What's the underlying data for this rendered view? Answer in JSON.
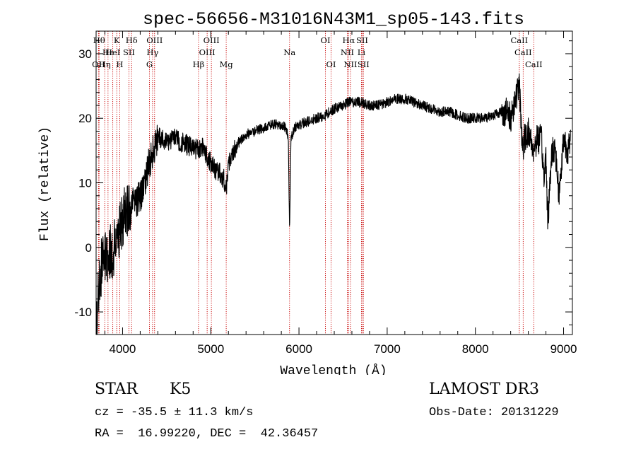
{
  "chart_data": {
    "type": "line",
    "title": "spec-56656-M31016N43M1_sp05-143.fits",
    "xlabel": "Wavelength (Å)",
    "ylabel": "Flux (relative)",
    "xlim": [
      3700,
      9100
    ],
    "ylim": [
      -13.5,
      33.5
    ],
    "x_ticks": [
      4000,
      5000,
      6000,
      7000,
      8000,
      9000
    ],
    "y_ticks": [
      -10,
      0,
      10,
      20,
      30
    ],
    "spectrum_anchor_points": {
      "x": [
        3700,
        3730,
        3760,
        3800,
        3850,
        3900,
        3950,
        4000,
        4050,
        4100,
        4150,
        4200,
        4250,
        4300,
        4350,
        4400,
        4450,
        4500,
        4600,
        4700,
        4800,
        4861,
        4900,
        4950,
        5000,
        5050,
        5100,
        5150,
        5175,
        5200,
        5250,
        5300,
        5400,
        5500,
        5600,
        5700,
        5800,
        5850,
        5880,
        5893,
        5910,
        5950,
        6000,
        6100,
        6200,
        6300,
        6400,
        6500,
        6563,
        6600,
        6700,
        6800,
        6900,
        7000,
        7100,
        7200,
        7300,
        7400,
        7500,
        7600,
        7700,
        7800,
        7900,
        8000,
        8100,
        8200,
        8300,
        8350,
        8400,
        8450,
        8498,
        8520,
        8542,
        8560,
        8600,
        8620,
        8662,
        8700,
        8750,
        8780,
        8800,
        8820,
        8840,
        8860,
        8900,
        8950,
        9000,
        9050,
        9080
      ],
      "y": [
        -11,
        -6,
        -3,
        -2,
        -1,
        0,
        2,
        4,
        6,
        6.5,
        7,
        8,
        10,
        13,
        15,
        17,
        17,
        16.5,
        17,
        16,
        15.5,
        15,
        15.5,
        14.5,
        13,
        12,
        11.5,
        10.5,
        9,
        13,
        15,
        16,
        17.5,
        18,
        18.5,
        19,
        19,
        18.5,
        17,
        2,
        17,
        18.5,
        19,
        19.5,
        20,
        20.5,
        21.5,
        22,
        22.5,
        22.5,
        22.5,
        22,
        22,
        22.5,
        23,
        23,
        22.5,
        22,
        21.5,
        21,
        21,
        20.5,
        20,
        20,
        20,
        20.5,
        21,
        21,
        20,
        23,
        25,
        19,
        15,
        17,
        18,
        17,
        15,
        17,
        16.5,
        10,
        15,
        4,
        8,
        14,
        16,
        8,
        17,
        15,
        16
      ]
    },
    "absorption_lines": [
      {
        "wavelength": 3734,
        "label": "Hθ",
        "row": 1
      },
      {
        "wavelength": 3727,
        "label": "OII",
        "row": 3
      },
      {
        "wavelength": 3798,
        "label": "Hη",
        "row": 3
      },
      {
        "wavelength": 3835,
        "label": "Hε",
        "row": 2
      },
      {
        "wavelength": 3889,
        "label": "HeI",
        "row": 2
      },
      {
        "wavelength": 3934,
        "label": "K",
        "row": 1
      },
      {
        "wavelength": 3968,
        "label": "H",
        "row": 3
      },
      {
        "wavelength": 4072,
        "label": "SII",
        "row": 2
      },
      {
        "wavelength": 4102,
        "label": "Hδ",
        "row": 1
      },
      {
        "wavelength": 4305,
        "label": "G",
        "row": 3
      },
      {
        "wavelength": 4340,
        "label": "Hγ",
        "row": 2
      },
      {
        "wavelength": 4363,
        "label": "OIII",
        "row": 1
      },
      {
        "wavelength": 4861,
        "label": "Hβ",
        "row": 3
      },
      {
        "wavelength": 4959,
        "label": "OIII",
        "row": 2
      },
      {
        "wavelength": 5007,
        "label": "OIII",
        "row": 1
      },
      {
        "wavelength": 5175,
        "label": "Mg",
        "row": 3
      },
      {
        "wavelength": 5893,
        "label": "Na",
        "row": 2
      },
      {
        "wavelength": 6300,
        "label": "OI",
        "row": 1
      },
      {
        "wavelength": 6364,
        "label": "OI",
        "row": 3
      },
      {
        "wavelength": 6548,
        "label": "NII",
        "row": 2
      },
      {
        "wavelength": 6563,
        "label": "Hα",
        "row": 1
      },
      {
        "wavelength": 6584,
        "label": "NII",
        "row": 3
      },
      {
        "wavelength": 6708,
        "label": "Li",
        "row": 2
      },
      {
        "wavelength": 6716,
        "label": "SII",
        "row": 1
      },
      {
        "wavelength": 6731,
        "label": "SII",
        "row": 3
      },
      {
        "wavelength": 8498,
        "label": "CaII",
        "row": 1
      },
      {
        "wavelength": 8542,
        "label": "CaII",
        "row": 2
      },
      {
        "wavelength": 8662,
        "label": "CaII",
        "row": 3
      }
    ]
  },
  "info": {
    "object_class": "STAR",
    "subclass": "K5",
    "survey": "LAMOST DR3",
    "cz_line": "cz = -35.5 ± 11.3 km/s",
    "obs_date_line": "Obs-Date: 20131229",
    "radec_line": "RA =  16.99220, DEC =  42.36457"
  },
  "colors": {
    "line_marker": "#c80000",
    "spectrum": "#000000",
    "axes": "#000000"
  }
}
